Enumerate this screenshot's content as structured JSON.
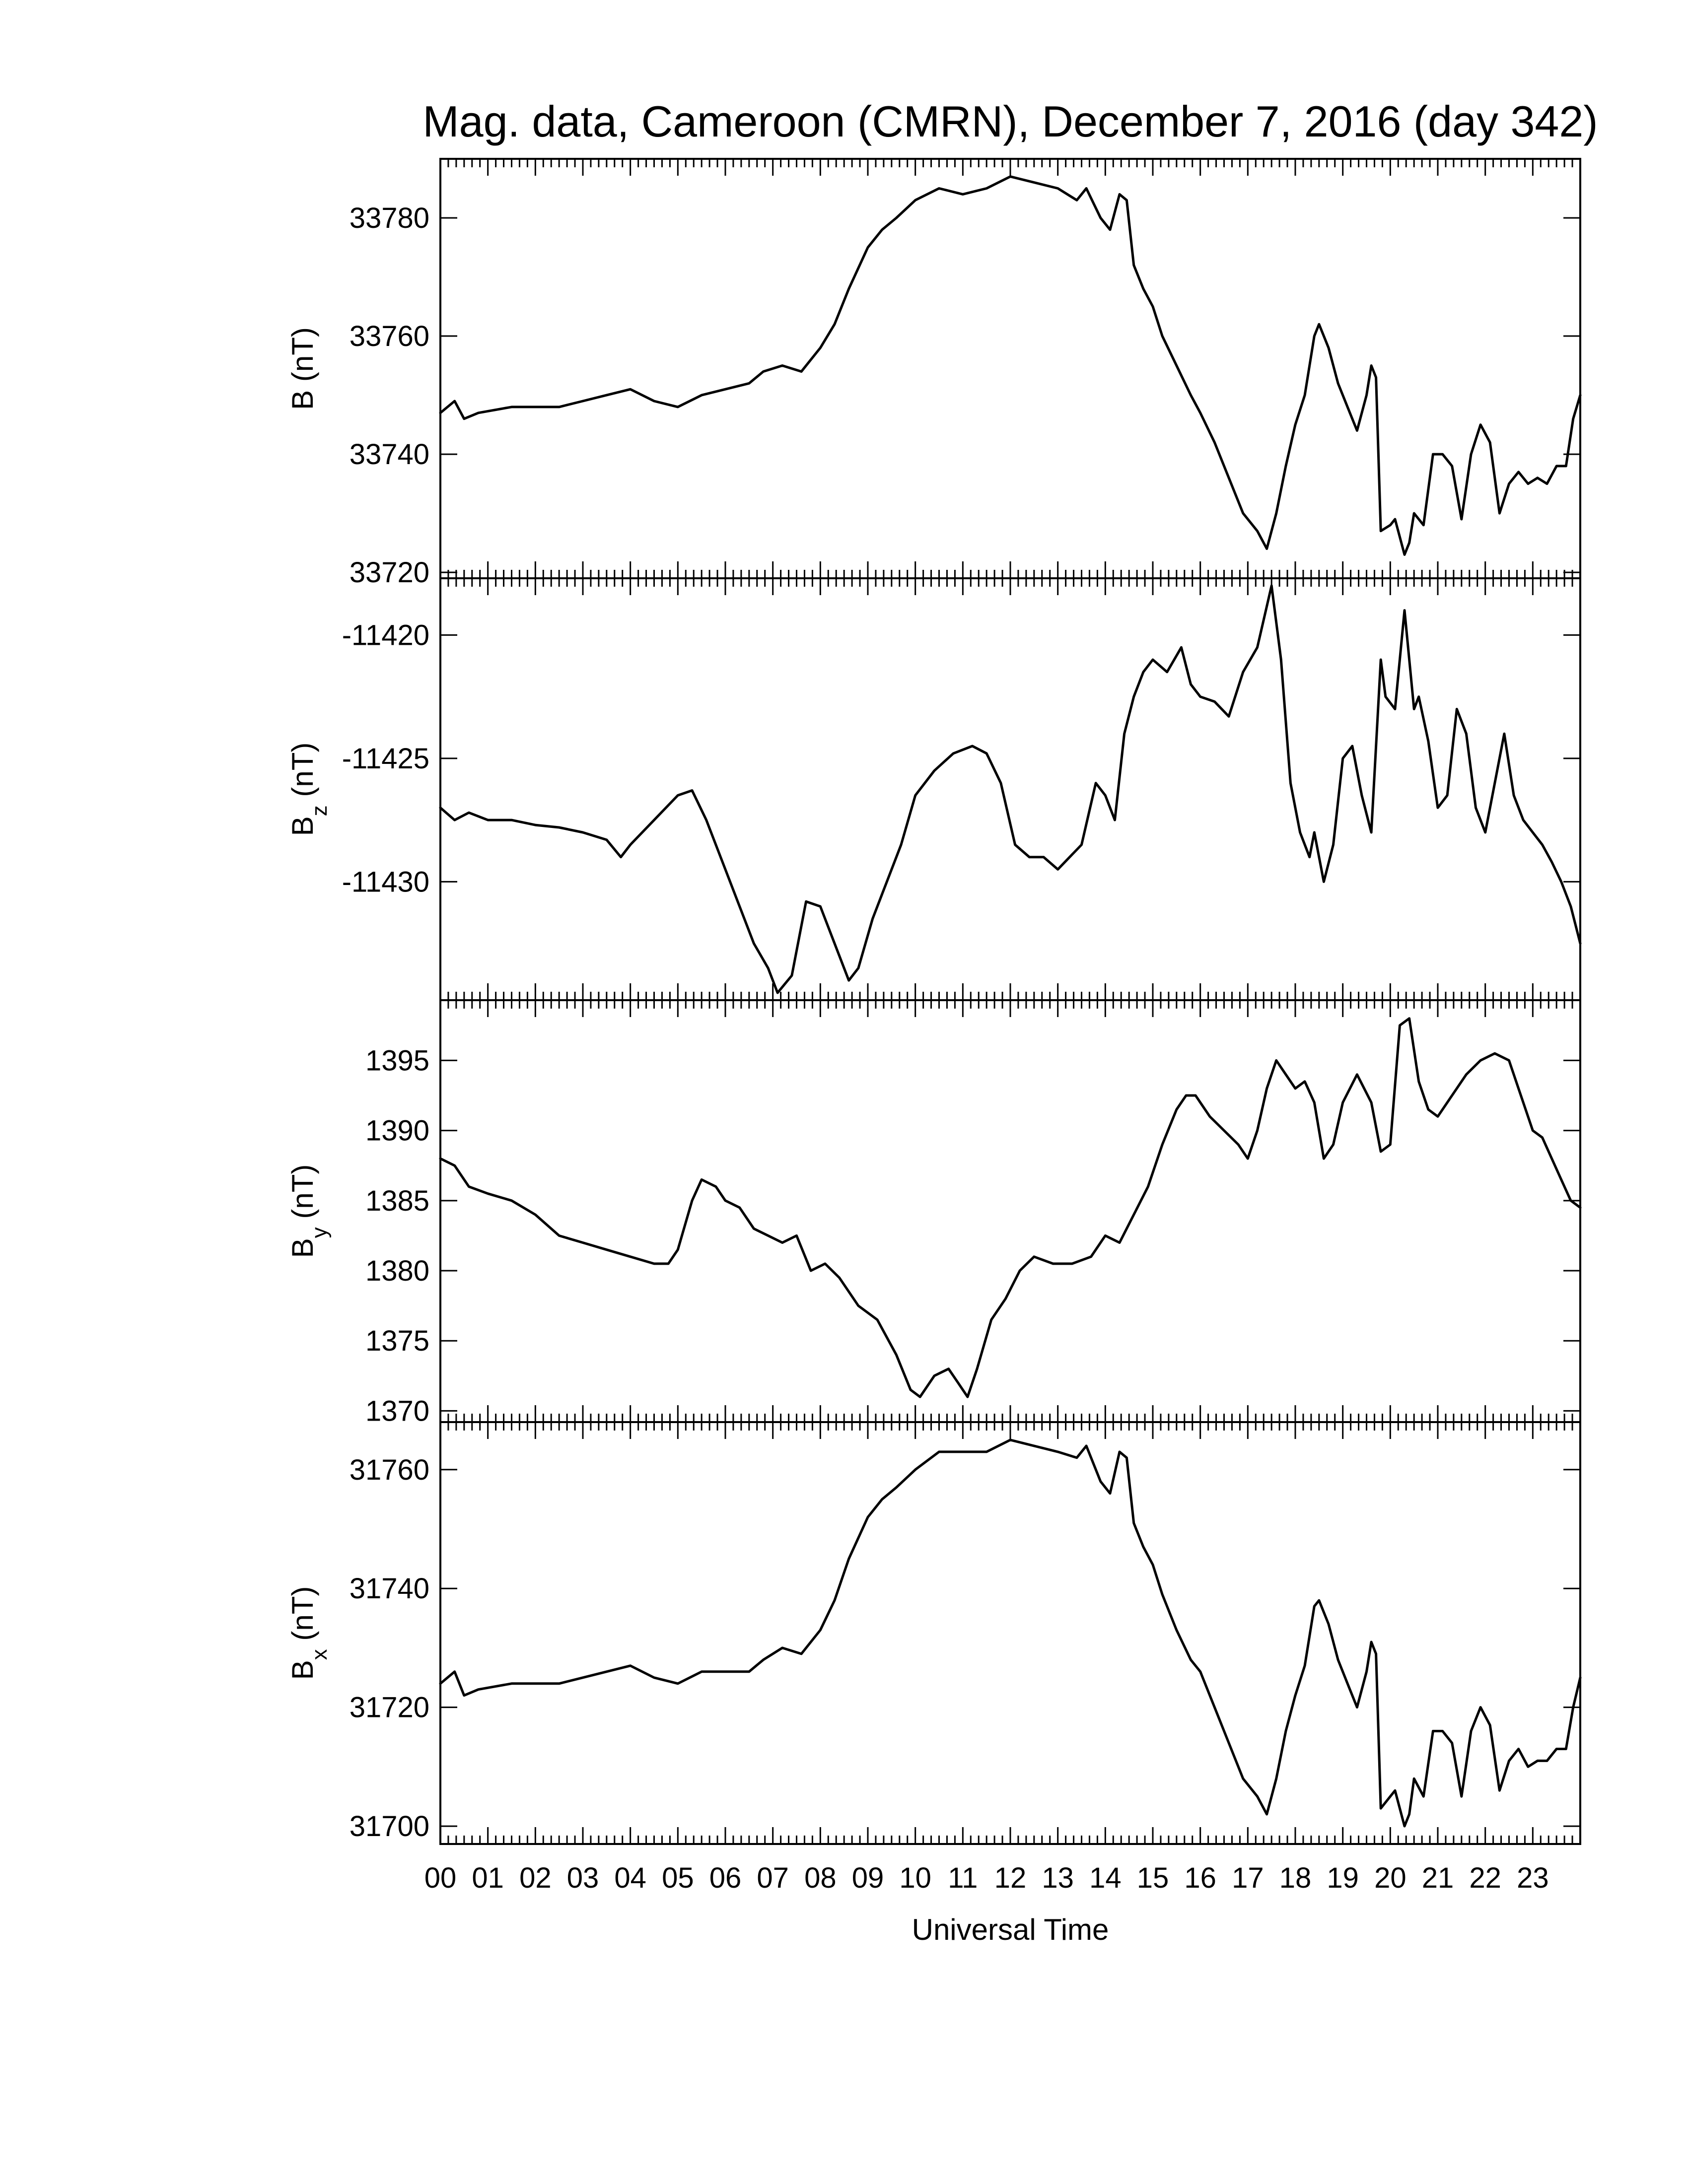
{
  "title": "Mag. data, Cameroon (CMRN), December 7, 2016 (day 342)",
  "xlabel": "Universal Time",
  "x_tick_labels": [
    "00",
    "01",
    "02",
    "03",
    "04",
    "05",
    "06",
    "07",
    "08",
    "09",
    "10",
    "11",
    "12",
    "13",
    "14",
    "15",
    "16",
    "17",
    "18",
    "19",
    "20",
    "21",
    "22",
    "23"
  ],
  "chart_data": [
    {
      "type": "line",
      "panel": "B",
      "ylabel": "B (nT)",
      "ylabel_main": "B",
      "ylabel_sub": "",
      "ylabel_unit": "(nT)",
      "xlim": [
        0,
        24
      ],
      "ylim": [
        33719,
        33790
      ],
      "yticks": [
        33720,
        33740,
        33760,
        33780
      ],
      "series": [
        {
          "x": [
            0,
            0.3,
            0.5,
            0.8,
            1.5,
            2.0,
            2.5,
            3.0,
            3.5,
            4.0,
            4.5,
            5.0,
            5.5,
            6.0,
            6.5,
            6.8,
            7.2,
            7.6,
            8.0,
            8.3,
            8.6,
            9.0,
            9.3,
            9.6,
            10.0,
            10.5,
            11.0,
            11.5,
            12.0,
            12.5,
            13.0,
            13.4,
            13.6,
            13.9,
            14.1,
            14.3,
            14.45,
            14.6,
            14.8,
            15.0,
            15.2,
            15.5,
            15.8,
            16.0,
            16.3,
            16.6,
            16.9,
            17.2,
            17.4,
            17.6,
            17.8,
            18.0,
            18.2,
            18.3,
            18.4,
            18.5,
            18.7,
            18.9,
            19.1,
            19.3,
            19.5,
            19.6,
            19.7,
            19.8,
            20.0,
            20.1,
            20.3,
            20.4,
            20.5,
            20.7,
            20.9,
            21.1,
            21.3,
            21.5,
            21.7,
            21.9,
            22.1,
            22.3,
            22.5,
            22.7,
            22.9,
            23.1,
            23.3,
            23.5,
            23.7,
            23.85,
            24
          ],
          "y": [
            33747,
            33749,
            33746,
            33747,
            33748,
            33748,
            33748,
            33749,
            33750,
            33751,
            33749,
            33748,
            33750,
            33751,
            33752,
            33754,
            33755,
            33754,
            33758,
            33762,
            33768,
            33775,
            33778,
            33780,
            33783,
            33785,
            33784,
            33785,
            33787,
            33786,
            33785,
            33783,
            33785,
            33780,
            33778,
            33784,
            33783,
            33772,
            33768,
            33765,
            33760,
            33755,
            33750,
            33747,
            33742,
            33736,
            33730,
            33727,
            33724,
            33730,
            33738,
            33745,
            33750,
            33755,
            33760,
            33762,
            33758,
            33752,
            33748,
            33744,
            33750,
            33755,
            33753,
            33727,
            33728,
            33729,
            33723,
            33725,
            33730,
            33728,
            33740,
            33740,
            33738,
            33729,
            33740,
            33745,
            33742,
            33730,
            33735,
            33737,
            33735,
            33736,
            33735,
            33738,
            33738,
            33746,
            33750
          ]
        }
      ]
    },
    {
      "type": "line",
      "panel": "Bz",
      "ylabel": "B z (nT)",
      "ylabel_main": "B",
      "ylabel_sub": "z",
      "ylabel_unit": "(nT)",
      "xlim": [
        0,
        24
      ],
      "ylim": [
        -11434.8,
        -11417.7
      ],
      "yticks": [
        -11420,
        -11425,
        -11430
      ],
      "series": [
        {
          "x": [
            0,
            0.3,
            0.6,
            1.0,
            1.5,
            2.0,
            2.5,
            3.0,
            3.5,
            3.8,
            4.0,
            4.5,
            5.0,
            5.3,
            5.6,
            6.0,
            6.3,
            6.6,
            6.9,
            7.1,
            7.4,
            7.7,
            8.0,
            8.3,
            8.6,
            8.8,
            9.1,
            9.4,
            9.7,
            10.0,
            10.4,
            10.8,
            11.2,
            11.5,
            11.8,
            12.1,
            12.4,
            12.7,
            13.0,
            13.5,
            13.8,
            14.0,
            14.2,
            14.4,
            14.6,
            14.8,
            15.0,
            15.3,
            15.6,
            15.8,
            16.0,
            16.3,
            16.6,
            16.9,
            17.2,
            17.5,
            17.7,
            17.9,
            18.1,
            18.3,
            18.4,
            18.6,
            18.8,
            19.0,
            19.2,
            19.4,
            19.6,
            19.8,
            19.9,
            20.1,
            20.3,
            20.5,
            20.6,
            20.8,
            21.0,
            21.2,
            21.4,
            21.6,
            21.8,
            22.0,
            22.2,
            22.4,
            22.6,
            22.8,
            23.0,
            23.2,
            23.4,
            23.6,
            23.8,
            24
          ],
          "y": [
            -11427,
            -11427.5,
            -11427.2,
            -11427.5,
            -11427.5,
            -11427.7,
            -11427.8,
            -11428,
            -11428.3,
            -11429,
            -11428.5,
            -11427.5,
            -11426.5,
            -11426.3,
            -11427.5,
            -11429.5,
            -11431,
            -11432.5,
            -11433.5,
            -11434.5,
            -11433.8,
            -11430.8,
            -11431,
            -11432.5,
            -11434,
            -11433.5,
            -11431.5,
            -11430,
            -11428.5,
            -11426.5,
            -11425.5,
            -11424.8,
            -11424.5,
            -11424.8,
            -11426,
            -11428.5,
            -11429,
            -11429,
            -11429.5,
            -11428.5,
            -11426,
            -11426.5,
            -11427.5,
            -11424,
            -11422.5,
            -11421.5,
            -11421,
            -11421.5,
            -11420.5,
            -11422,
            -11422.5,
            -11422.7,
            -11423.3,
            -11421.5,
            -11420.5,
            -11418,
            -11421,
            -11426,
            -11428,
            -11429,
            -11428,
            -11430,
            -11428.5,
            -11425,
            -11424.5,
            -11426.5,
            -11428,
            -11421,
            -11422.5,
            -11423,
            -11419,
            -11423,
            -11422.5,
            -11424.3,
            -11427,
            -11426.5,
            -11423,
            -11424,
            -11427,
            -11428,
            -11426,
            -11424,
            -11426.5,
            -11427.5,
            -11428,
            -11428.5,
            -11429.2,
            -11430,
            -11431,
            -11432.5
          ]
        }
      ]
    },
    {
      "type": "line",
      "panel": "By",
      "ylabel": "B y (nT)",
      "ylabel_main": "B",
      "ylabel_sub": "y",
      "ylabel_unit": "(nT)",
      "xlim": [
        0,
        24
      ],
      "ylim": [
        1369.2,
        1399.3
      ],
      "yticks": [
        1370,
        1375,
        1380,
        1385,
        1390,
        1395
      ],
      "series": [
        {
          "x": [
            0,
            0.3,
            0.6,
            1.0,
            1.5,
            2.0,
            2.5,
            3.0,
            3.5,
            4.0,
            4.5,
            4.8,
            5.0,
            5.3,
            5.5,
            5.8,
            6.0,
            6.3,
            6.6,
            6.9,
            7.2,
            7.5,
            7.8,
            8.1,
            8.4,
            8.8,
            9.2,
            9.6,
            9.9,
            10.1,
            10.4,
            10.7,
            10.9,
            11.1,
            11.3,
            11.6,
            11.9,
            12.2,
            12.5,
            12.9,
            13.3,
            13.7,
            14.0,
            14.3,
            14.6,
            14.9,
            15.2,
            15.5,
            15.7,
            15.9,
            16.2,
            16.5,
            16.8,
            17.0,
            17.2,
            17.4,
            17.6,
            17.8,
            18.0,
            18.2,
            18.4,
            18.6,
            18.8,
            19.0,
            19.3,
            19.6,
            19.8,
            20.0,
            20.2,
            20.4,
            20.6,
            20.8,
            21.0,
            21.3,
            21.6,
            21.9,
            22.2,
            22.5,
            22.7,
            23.0,
            23.2,
            23.4,
            23.6,
            23.8,
            24
          ],
          "y": [
            1388,
            1387.5,
            1386,
            1385.5,
            1385,
            1384,
            1382.5,
            1382,
            1381.5,
            1381,
            1380.5,
            1380.5,
            1381.5,
            1385,
            1386.5,
            1386,
            1385,
            1384.5,
            1383,
            1382.5,
            1382,
            1382.5,
            1380,
            1380.5,
            1379.5,
            1377.5,
            1376.5,
            1374,
            1371.5,
            1371,
            1372.5,
            1373,
            1372,
            1371,
            1373,
            1376.5,
            1378,
            1380,
            1381,
            1380.5,
            1380.5,
            1381,
            1382.5,
            1382,
            1384,
            1386,
            1389,
            1391.5,
            1392.5,
            1392.5,
            1391,
            1390,
            1389,
            1388,
            1390,
            1393,
            1395,
            1394,
            1393,
            1393.5,
            1392,
            1388,
            1389,
            1392,
            1394,
            1392,
            1388.5,
            1389,
            1397.5,
            1398,
            1393.5,
            1391.5,
            1391,
            1392.5,
            1394,
            1395,
            1395.5,
            1395,
            1393,
            1390,
            1389.5,
            1388,
            1386.5,
            1385,
            1384.5
          ]
        }
      ]
    },
    {
      "type": "line",
      "panel": "Bx",
      "ylabel": "B x (nT)",
      "ylabel_main": "B",
      "ylabel_sub": "x",
      "ylabel_unit": "(nT)",
      "xlim": [
        0,
        24
      ],
      "ylim": [
        31697,
        31768
      ],
      "yticks": [
        31700,
        31720,
        31740,
        31760
      ],
      "series": [
        {
          "x": [
            0,
            0.3,
            0.5,
            0.8,
            1.5,
            2.0,
            2.5,
            3.0,
            3.5,
            4.0,
            4.5,
            5.0,
            5.5,
            6.0,
            6.5,
            6.8,
            7.2,
            7.6,
            8.0,
            8.3,
            8.6,
            9.0,
            9.3,
            9.6,
            10.0,
            10.5,
            11.0,
            11.5,
            12.0,
            12.5,
            13.0,
            13.4,
            13.6,
            13.9,
            14.1,
            14.3,
            14.45,
            14.6,
            14.8,
            15.0,
            15.2,
            15.5,
            15.8,
            16.0,
            16.3,
            16.6,
            16.9,
            17.2,
            17.4,
            17.6,
            17.8,
            18.0,
            18.2,
            18.3,
            18.4,
            18.5,
            18.7,
            18.9,
            19.1,
            19.3,
            19.5,
            19.6,
            19.7,
            19.8,
            20.0,
            20.1,
            20.3,
            20.4,
            20.5,
            20.7,
            20.9,
            21.1,
            21.3,
            21.5,
            21.7,
            21.9,
            22.1,
            22.3,
            22.5,
            22.7,
            22.9,
            23.1,
            23.3,
            23.5,
            23.7,
            23.85,
            24
          ],
          "y": [
            31724,
            31726,
            31722,
            31723,
            31724,
            31724,
            31724,
            31725,
            31726,
            31727,
            31725,
            31724,
            31726,
            31726,
            31726,
            31728,
            31730,
            31729,
            31733,
            31738,
            31745,
            31752,
            31755,
            31757,
            31760,
            31763,
            31763,
            31763,
            31765,
            31764,
            31763,
            31762,
            31764,
            31758,
            31756,
            31763,
            31762,
            31751,
            31747,
            31744,
            31739,
            31733,
            31728,
            31726,
            31720,
            31714,
            31708,
            31705,
            31702,
            31708,
            31716,
            31722,
            31727,
            31732,
            31737,
            31738,
            31734,
            31728,
            31724,
            31720,
            31726,
            31731,
            31729,
            31703,
            31705,
            31706,
            31700,
            31702,
            31708,
            31705,
            31716,
            31716,
            31714,
            31705,
            31716,
            31720,
            31717,
            31706,
            31711,
            31713,
            31710,
            31711,
            31711,
            31713,
            31713,
            31720,
            31725
          ]
        }
      ]
    }
  ]
}
